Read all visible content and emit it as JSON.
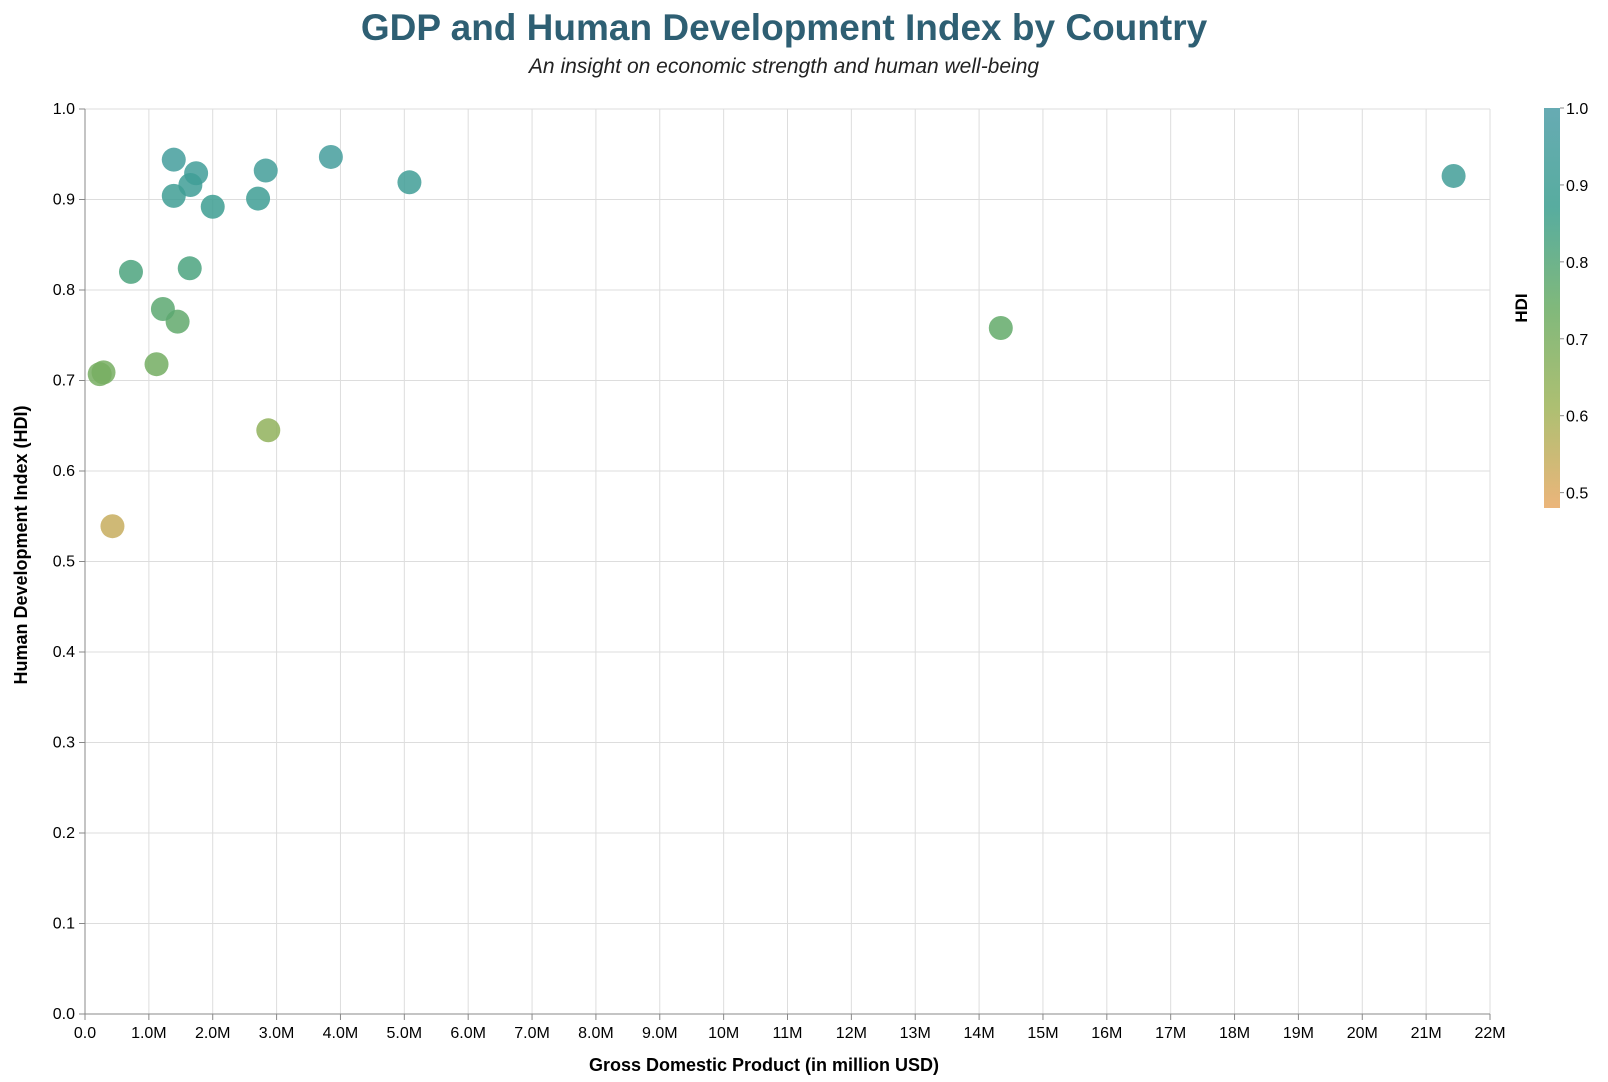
{
  "chart_data": {
    "type": "scatter",
    "title": "GDP and Human Development Index by Country",
    "subtitle": "An insight on economic strength and human well-being",
    "xlabel": "Gross Domestic Product (in million USD)",
    "ylabel": "Human Development Index (HDI)",
    "xlim": [
      0,
      22000000
    ],
    "ylim": [
      0,
      1.0
    ],
    "x_ticks": [
      "0.0",
      "1.0M",
      "2.0M",
      "3.0M",
      "4.0M",
      "5.0M",
      "6.0M",
      "7.0M",
      "8.0M",
      "9.0M",
      "10M",
      "11M",
      "12M",
      "13M",
      "14M",
      "15M",
      "16M",
      "17M",
      "18M",
      "19M",
      "20M",
      "21M",
      "22M"
    ],
    "y_ticks": [
      "0.0",
      "0.1",
      "0.2",
      "0.3",
      "0.4",
      "0.5",
      "0.6",
      "0.7",
      "0.8",
      "0.9",
      "1.0"
    ],
    "grid": true,
    "legend": {
      "title": "HDI",
      "placement": "right",
      "domain": [
        0.48,
        1.0
      ],
      "labels": [
        "1.0",
        "0.9",
        "0.8",
        "0.7",
        "0.6",
        "0.5"
      ],
      "colors": [
        "#e8a863",
        "#9fb459",
        "#6aac64",
        "#3a9e8e",
        "#4c9ca6"
      ]
    },
    "points": [
      {
        "x": 21430000,
        "y": 0.926
      },
      {
        "x": 14340000,
        "y": 0.758
      },
      {
        "x": 5080000,
        "y": 0.919
      },
      {
        "x": 3850000,
        "y": 0.947
      },
      {
        "x": 2830000,
        "y": 0.932
      },
      {
        "x": 2870000,
        "y": 0.645
      },
      {
        "x": 2710000,
        "y": 0.901
      },
      {
        "x": 2000000,
        "y": 0.892
      },
      {
        "x": 1740000,
        "y": 0.929
      },
      {
        "x": 1650000,
        "y": 0.916
      },
      {
        "x": 1390000,
        "y": 0.944
      },
      {
        "x": 1390000,
        "y": 0.904
      },
      {
        "x": 1640000,
        "y": 0.824
      },
      {
        "x": 1450000,
        "y": 0.765
      },
      {
        "x": 1220000,
        "y": 0.779
      },
      {
        "x": 1120000,
        "y": 0.718
      },
      {
        "x": 720000,
        "y": 0.82
      },
      {
        "x": 290000,
        "y": 0.709
      },
      {
        "x": 230000,
        "y": 0.707
      },
      {
        "x": 430000,
        "y": 0.539
      }
    ]
  }
}
